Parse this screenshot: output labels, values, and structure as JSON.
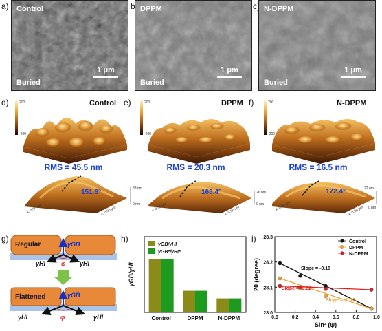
{
  "panels": {
    "a": {
      "label": "a)",
      "title": "Control",
      "region": "Buried",
      "scale": "1 μm"
    },
    "b": {
      "label": "b)",
      "title": "DPPM",
      "region": "Buried",
      "scale": "1 μm"
    },
    "c": {
      "label": "c)",
      "title": "N-DPPM",
      "region": "Buried",
      "scale": "1 μm"
    },
    "d": {
      "label": "d)",
      "title": "Control",
      "rms": "RMS = 45.5 nm",
      "angle": "151.6°",
      "zmax": "38 nm",
      "zmin": "0 nm"
    },
    "e": {
      "label": "e)",
      "title": "DPPM",
      "rms": "RMS = 20.3 nm",
      "angle": "168.4°",
      "zmax": "26 nm",
      "zmin": "0 nm"
    },
    "f": {
      "label": "f)",
      "title": "N-DPPM",
      "rms": "RMS = 16.5 nm",
      "angle": "172.4°",
      "zmax": "22 nm",
      "zmin": "0 nm"
    }
  },
  "afm_axes": {
    "x": "x: 0.30 μm",
    "y": "y: 0.30 μm",
    "cb_top": "200",
    "cb_bot": "-200",
    "cb_unit": "[nm]"
  },
  "schematic": {
    "label": "g)",
    "regular": "Regular",
    "flattened": "Flattened",
    "gamma_gb": "γGB",
    "gamma_hi": "γHI",
    "phi": "φ"
  },
  "colors": {
    "olive": "#8b8b1a",
    "green": "#1e9a1e",
    "blue_text": "#1a3fd6",
    "grain": "#e8893a",
    "substrate": "#a9c4e8"
  },
  "chart_h": {
    "label": "h)",
    "chart_data": {
      "type": "bar",
      "categories": [
        "Control",
        "DPPM",
        "N-DPPM"
      ],
      "series": [
        {
          "name": "γGB/γHI",
          "values": [
            0.49,
            0.2,
            0.13
          ]
        },
        {
          "name": "γGB*/γHI*",
          "values": [
            0.49,
            0.2,
            0.13
          ]
        }
      ],
      "ylabel": "γGB/γHI",
      "ylim": [
        0,
        0.7
      ]
    }
  },
  "chart_i": {
    "label": "i)",
    "chart_data": {
      "type": "scatter",
      "xlabel": "Sin² (ψ)",
      "ylabel": "2θ (degree)",
      "xlim": [
        0,
        1.0
      ],
      "ylim": [
        28.0,
        28.3
      ],
      "xticks": [
        "0.0",
        "0.2",
        "0.4",
        "0.6",
        "0.8",
        "1.0"
      ],
      "yticks": [
        "28.0",
        "28.1",
        "28.2",
        "28.3"
      ],
      "series": [
        {
          "name": "Control",
          "color": "#111111",
          "x": [
            0.05,
            0.25,
            0.5,
            0.95
          ],
          "y": [
            28.195,
            28.145,
            28.105,
            28.015
          ],
          "slope_label": "Slope = -0.18"
        },
        {
          "name": "DPPM",
          "color": "#f0a030",
          "x": [
            0.05,
            0.25,
            0.5,
            0.95
          ],
          "y": [
            28.135,
            28.095,
            28.065,
            28.015
          ],
          "slope_label": "Slope = -0.10"
        },
        {
          "name": "N-DPPM",
          "color": "#e02020",
          "x": [
            0.05,
            0.25,
            0.5,
            0.95
          ],
          "y": [
            28.105,
            28.1,
            28.093,
            28.09
          ],
          "slope_label": "Slope = -0.02"
        }
      ]
    }
  }
}
